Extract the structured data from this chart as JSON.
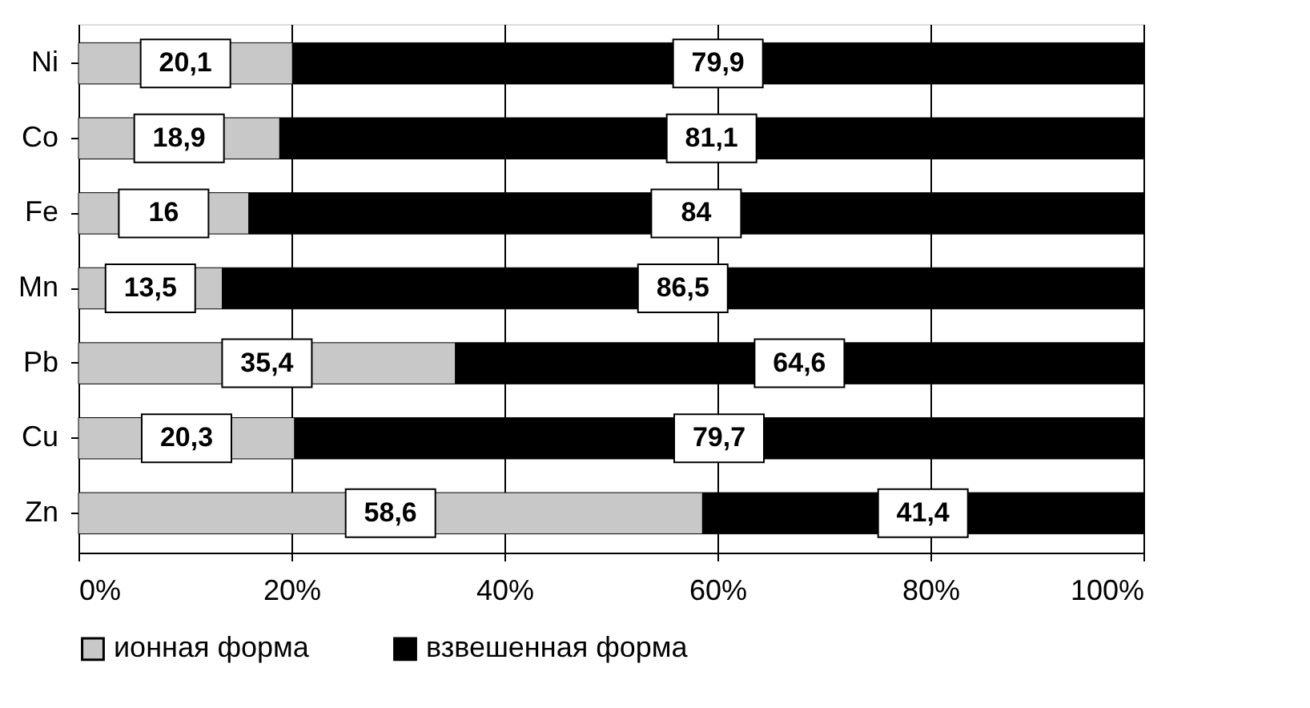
{
  "chart_data": {
    "type": "bar",
    "orientation": "horizontal",
    "stacked": true,
    "categories": [
      "Ni",
      "Co",
      "Fe",
      "Mn",
      "Pb",
      "Cu",
      "Zn"
    ],
    "series": [
      {
        "name": "ионная форма",
        "color": "#c8c8c8",
        "values": [
          20.1,
          18.9,
          16,
          13.5,
          35.4,
          20.3,
          58.6
        ],
        "value_labels": [
          "20,1",
          "18,9",
          "16",
          "13,5",
          "35,4",
          "20,3",
          "58,6"
        ]
      },
      {
        "name": "взвешенная форма",
        "color": "#000000",
        "values": [
          79.9,
          81.1,
          84,
          86.5,
          64.6,
          79.7,
          41.4
        ],
        "value_labels": [
          "79,9",
          "81,1",
          "84",
          "86,5",
          "64,6",
          "79,7",
          "41,4"
        ]
      }
    ],
    "xlim": [
      0,
      100
    ],
    "xticks": [
      {
        "value": 0,
        "label": "0%"
      },
      {
        "value": 20,
        "label": "20%"
      },
      {
        "value": 40,
        "label": "40%"
      },
      {
        "value": 60,
        "label": "60%"
      },
      {
        "value": 80,
        "label": "80%"
      },
      {
        "value": 100,
        "label": "100%"
      }
    ],
    "grid": "x",
    "legend": "bottom"
  }
}
